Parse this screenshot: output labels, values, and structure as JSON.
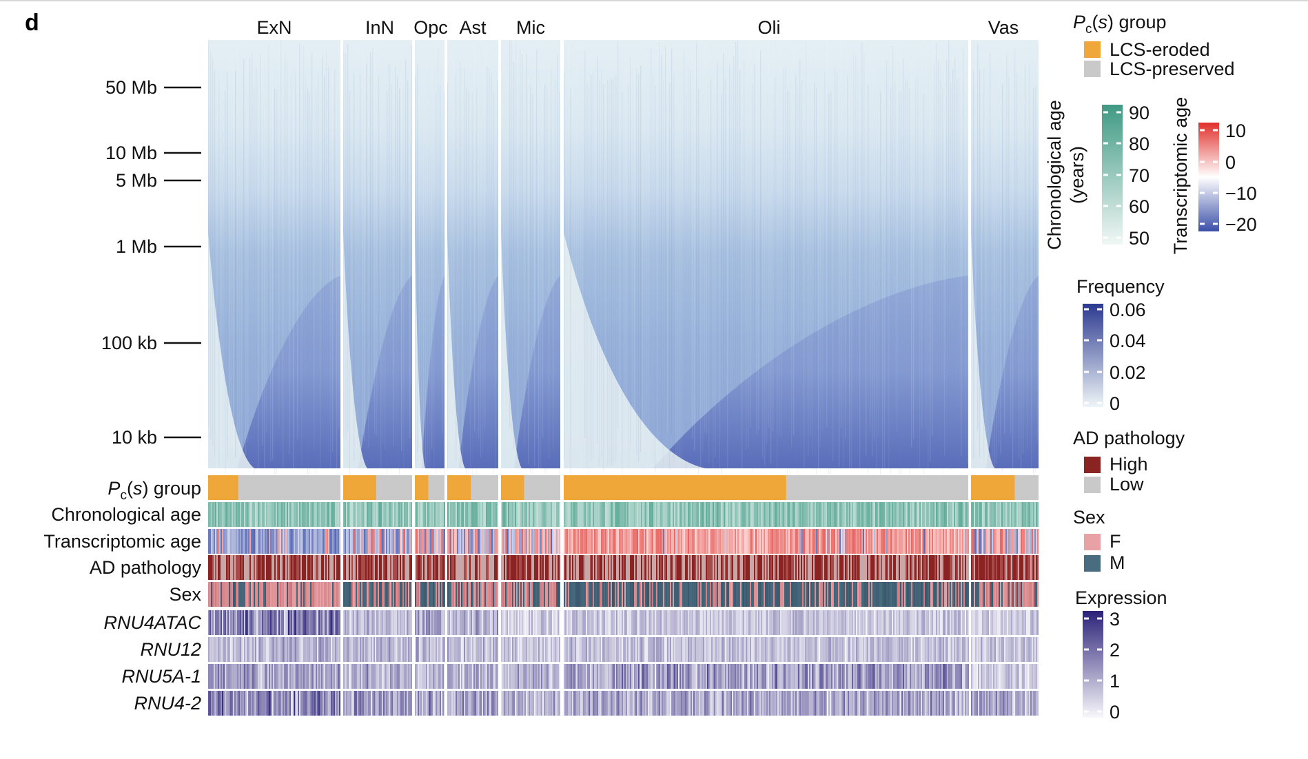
{
  "panel_label": "d",
  "chart_data": {
    "type": "heatmap",
    "cell_types": [
      "ExN",
      "InN",
      "Opc",
      "Ast",
      "Mic",
      "Oli",
      "Vas"
    ],
    "y_axis": {
      "scale": "log",
      "ticks": [
        {
          "label": "50 Mb",
          "value": 50000000
        },
        {
          "label": "10 Mb",
          "value": 10000000
        },
        {
          "label": "5 Mb",
          "value": 5000000
        },
        {
          "label": "1 Mb",
          "value": 1000000
        },
        {
          "label": "100 kb",
          "value": 100000
        },
        {
          "label": "10 kb",
          "value": 10000
        }
      ]
    },
    "annotation_tracks": {
      "pcs_group": {
        "label_prefix": "P",
        "label_sub": "c",
        "label_suffix": "(s) group",
        "eroded_fraction": [
          0.23,
          0.48,
          0.46,
          0.47,
          0.39,
          0.55,
          0.65
        ]
      },
      "row_labels": [
        "Chronological age",
        "Transcriptomic age",
        "AD pathology",
        "Sex"
      ],
      "gene_labels": [
        "RNU4ATAC",
        "RNU12",
        "RNU5A-1",
        "RNU4-2"
      ]
    },
    "legends": {
      "pcs_group": {
        "title_prefix": "P",
        "title_sub": "c",
        "title_suffix": "(s) group",
        "items": [
          {
            "label": "LCS-eroded",
            "color": "#f0a73a"
          },
          {
            "label": "LCS-preserved",
            "color": "#c9c9c9"
          }
        ]
      },
      "chronological_age": {
        "title_line1": "Chronological age",
        "title_line2": "(years)",
        "ticks": [
          "90",
          "80",
          "70",
          "60",
          "50"
        ],
        "range": [
          50,
          90
        ],
        "colors": [
          "#f1f7f5",
          "#3f9a84"
        ]
      },
      "transcriptomic_age": {
        "title": "Transcriptomic age",
        "ticks": [
          "10",
          "0",
          "−10",
          "−20"
        ],
        "range": [
          -20,
          10
        ],
        "colors": [
          "#3b4fa8",
          "#ffffff",
          "#e0302b"
        ]
      },
      "frequency": {
        "title": "Frequency",
        "ticks": [
          "0.06",
          "0.04",
          "0.02",
          "0"
        ],
        "range": [
          0,
          0.06
        ],
        "colors": [
          "#eef5f7",
          "#2c3a90"
        ]
      },
      "ad_pathology": {
        "title": "AD pathology",
        "items": [
          {
            "label": "High",
            "color": "#8b2323"
          },
          {
            "label": "Low",
            "color": "#c9c9c9"
          }
        ]
      },
      "sex": {
        "title": "Sex",
        "items": [
          {
            "label": "F",
            "color": "#e8a1a4"
          },
          {
            "label": "M",
            "color": "#4a6c80"
          }
        ]
      },
      "expression": {
        "title": "Expression",
        "ticks": [
          "3",
          "2",
          "1",
          "0"
        ],
        "range": [
          0,
          3
        ],
        "colors": [
          "#f8f7fb",
          "#2b2278"
        ]
      }
    }
  }
}
